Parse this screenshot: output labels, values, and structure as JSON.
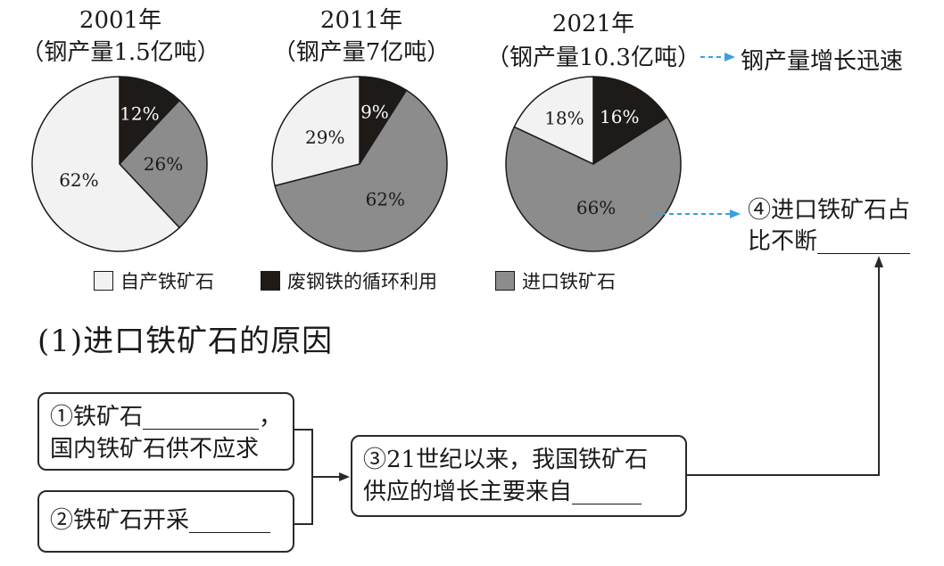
{
  "chart_data": [
    {
      "type": "pie",
      "title": "2001年",
      "subtitle": "（钢产量1.5亿吨）",
      "slices": [
        {
          "name": "废钢铁的循环利用",
          "value": 12,
          "label": "12%"
        },
        {
          "name": "进口铁矿石",
          "value": 26,
          "label": "26%"
        },
        {
          "name": "自产铁矿石",
          "value": 62,
          "label": "62%"
        }
      ]
    },
    {
      "type": "pie",
      "title": "2011年",
      "subtitle": "（钢产量7亿吨）",
      "slices": [
        {
          "name": "废钢铁的循环利用",
          "value": 9,
          "label": "9%"
        },
        {
          "name": "进口铁矿石",
          "value": 62,
          "label": "62%"
        },
        {
          "name": "自产铁矿石",
          "value": 29,
          "label": "29%"
        }
      ]
    },
    {
      "type": "pie",
      "title": "2021年",
      "subtitle": "（钢产量10.3亿吨）",
      "slices": [
        {
          "name": "废钢铁的循环利用",
          "value": 16,
          "label": "16%"
        },
        {
          "name": "进口铁矿石",
          "value": 66,
          "label": "66%"
        },
        {
          "name": "自产铁矿石",
          "value": 18,
          "label": "18%"
        }
      ]
    }
  ],
  "colors": {
    "自产铁矿石": "#f2f2f2",
    "废钢铁的循环利用": "#1e1a17",
    "进口铁矿石": "#8c8c8c",
    "arrow_dashed": "#3aa0e0"
  },
  "legend": [
    {
      "label": "自产铁矿石"
    },
    {
      "label": "废钢铁的循环利用"
    },
    {
      "label": "进口铁矿石"
    }
  ],
  "annotations": {
    "growth": "钢产量增长迅速",
    "ratio_line1": "④进口铁矿石占",
    "ratio_line2": "比不断________"
  },
  "section_title": "(1)进口铁矿石的原因",
  "boxes": {
    "box1_line1": "①铁矿石__________，",
    "box1_line2": "国内铁矿石供不应求",
    "box2": "②铁矿石开采_______",
    "box3_line1": "③21世纪以来，我国铁矿石",
    "box3_line2": "供应的增长主要来自______"
  }
}
